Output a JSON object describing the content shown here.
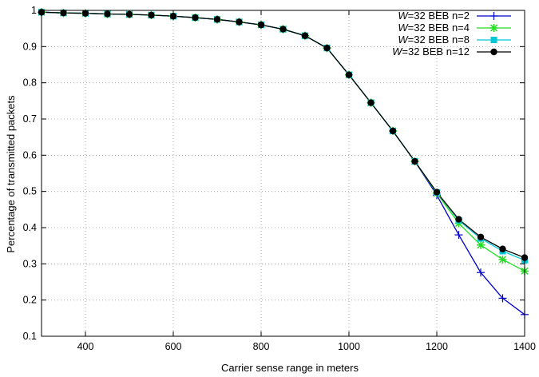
{
  "chart_data": {
    "type": "line",
    "xlabel": "Carrier sense range in meters",
    "ylabel": "Percentage of transmitted packets",
    "xlim": [
      300,
      1400
    ],
    "ylim": [
      0.1,
      1.0
    ],
    "xticks": [
      "400",
      "600",
      "800",
      "1000",
      "1200",
      "1400"
    ],
    "yticks": [
      "0.1",
      "0.2",
      "0.3",
      "0.4",
      "0.5",
      "0.6",
      "0.7",
      "0.8",
      "0.9",
      "1"
    ],
    "xtick_values": [
      400,
      600,
      800,
      1000,
      1200,
      1400
    ],
    "ytick_values": [
      0.1,
      0.2,
      0.3,
      0.4,
      0.5,
      0.6,
      0.7,
      0.8,
      0.9,
      1.0
    ],
    "grid": true,
    "legend_position": "top-right",
    "x": [
      300,
      350,
      400,
      450,
      500,
      550,
      600,
      650,
      700,
      750,
      800,
      850,
      900,
      950,
      1000,
      1050,
      1100,
      1150,
      1200,
      1250,
      1300,
      1350,
      1400
    ],
    "series": [
      {
        "name_italic": "W",
        "name_rest": "=32 BEB n=2",
        "color": "#0000c8",
        "marker": "plus",
        "values": [
          0.995,
          0.993,
          0.992,
          0.99,
          0.989,
          0.987,
          0.984,
          0.98,
          0.975,
          0.968,
          0.96,
          0.948,
          0.93,
          0.896,
          0.822,
          0.745,
          0.667,
          0.583,
          0.49,
          0.38,
          0.276,
          0.205,
          0.16
        ]
      },
      {
        "name_italic": "W",
        "name_rest": "=32 BEB n=4",
        "color": "#22dd22",
        "marker": "star",
        "values": [
          0.995,
          0.993,
          0.992,
          0.99,
          0.989,
          0.987,
          0.984,
          0.98,
          0.975,
          0.968,
          0.96,
          0.948,
          0.93,
          0.896,
          0.822,
          0.745,
          0.667,
          0.583,
          0.495,
          0.412,
          0.352,
          0.312,
          0.28
        ]
      },
      {
        "name_italic": "W",
        "name_rest": "=32 BEB n=8",
        "color": "#00c8d8",
        "marker": "square",
        "values": [
          0.995,
          0.993,
          0.992,
          0.99,
          0.989,
          0.987,
          0.984,
          0.98,
          0.975,
          0.968,
          0.96,
          0.948,
          0.93,
          0.896,
          0.822,
          0.745,
          0.667,
          0.583,
          0.497,
          0.42,
          0.37,
          0.335,
          0.31
        ]
      },
      {
        "name_italic": "W",
        "name_rest": "=32 BEB n=12",
        "color": "#000000",
        "marker": "circle",
        "values": [
          0.995,
          0.993,
          0.992,
          0.99,
          0.989,
          0.987,
          0.984,
          0.98,
          0.975,
          0.968,
          0.96,
          0.948,
          0.93,
          0.896,
          0.822,
          0.745,
          0.667,
          0.583,
          0.498,
          0.423,
          0.374,
          0.341,
          0.317
        ]
      }
    ]
  }
}
